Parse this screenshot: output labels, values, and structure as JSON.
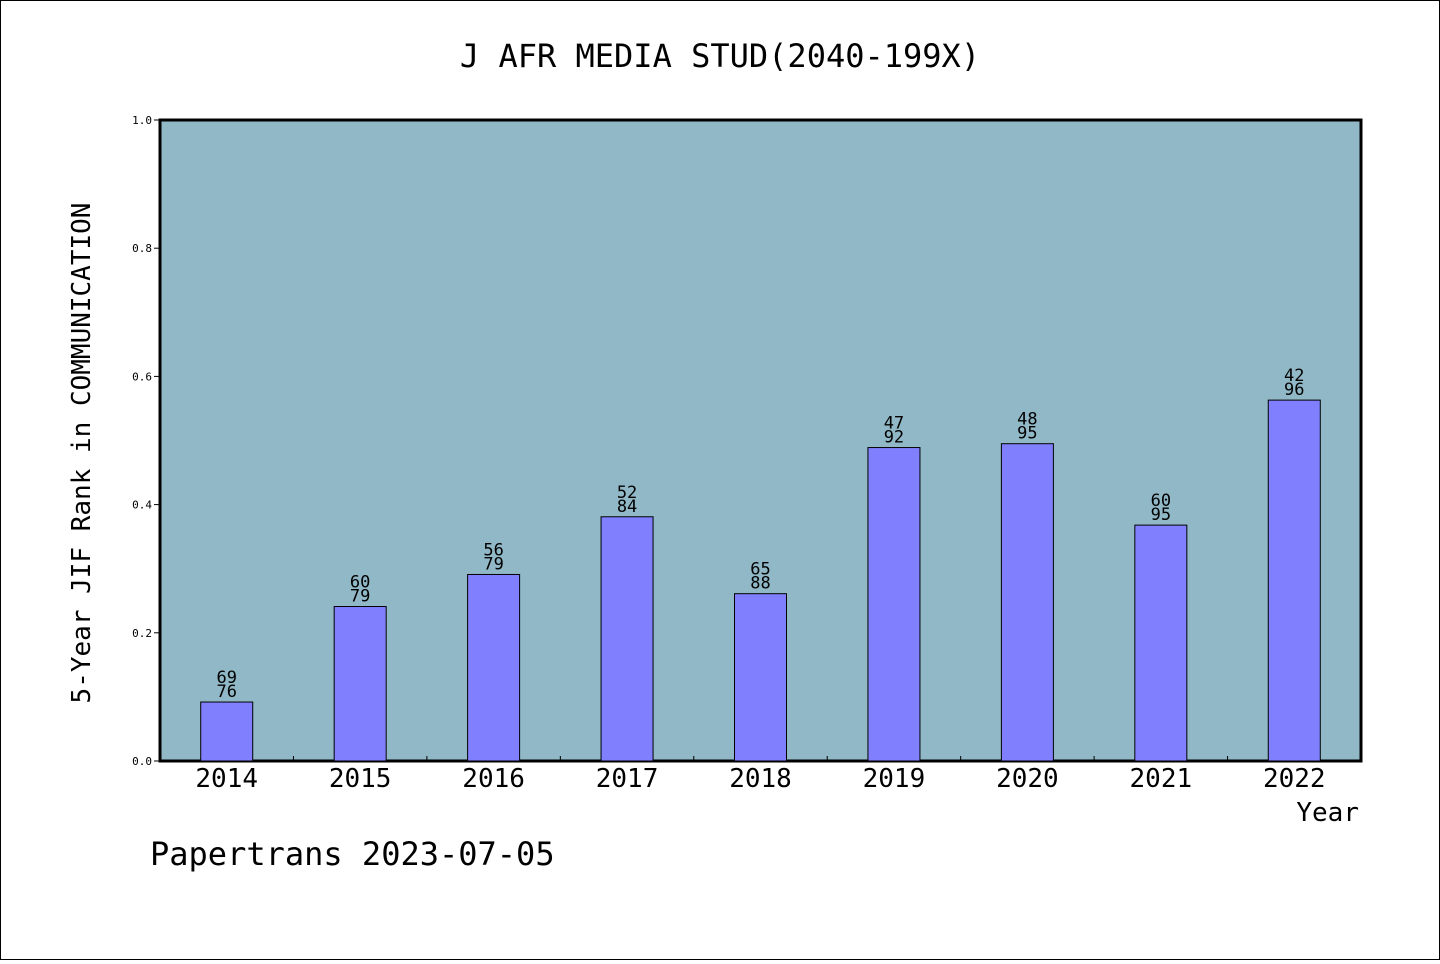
{
  "chart_data": {
    "type": "bar",
    "title": "J AFR MEDIA STUD(2040-199X)",
    "xlabel": "Year",
    "ylabel": "5-Year JIF Rank in COMMUNICATION",
    "footer": "Papertrans 2023-07-05",
    "categories": [
      "2014",
      "2015",
      "2016",
      "2017",
      "2018",
      "2019",
      "2020",
      "2021",
      "2022"
    ],
    "values": [
      0.092,
      0.241,
      0.291,
      0.381,
      0.261,
      0.489,
      0.495,
      0.368,
      0.563
    ],
    "bar_labels": [
      [
        "69",
        "76"
      ],
      [
        "60",
        "79"
      ],
      [
        "56",
        "79"
      ],
      [
        "52",
        "84"
      ],
      [
        "65",
        "88"
      ],
      [
        "47",
        "92"
      ],
      [
        "48",
        "95"
      ],
      [
        "60",
        "95"
      ],
      [
        "42",
        "96"
      ]
    ],
    "ylim": [
      0,
      1.0
    ],
    "yticks": [
      "0.0",
      "0.2",
      "0.4",
      "0.6",
      "0.8",
      "1.0"
    ],
    "grid": false,
    "colors": {
      "plot_background": "#90b8c6",
      "bar_fill": "#8080ff",
      "bar_stroke": "#000000"
    }
  }
}
